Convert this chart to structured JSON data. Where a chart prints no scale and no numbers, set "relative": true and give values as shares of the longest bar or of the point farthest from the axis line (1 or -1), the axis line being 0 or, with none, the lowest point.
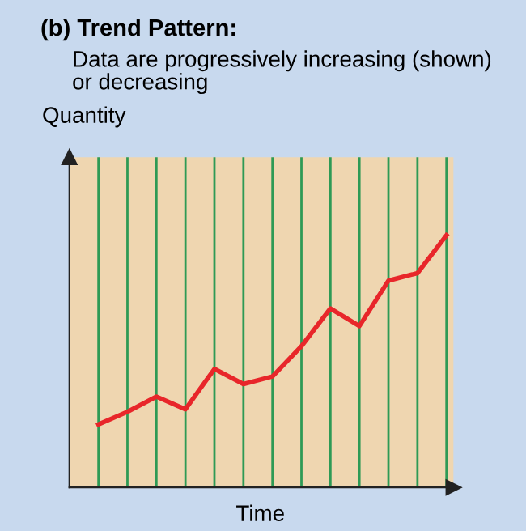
{
  "chart_data": {
    "type": "line",
    "title": "(b) Trend Pattern:",
    "subtitle": "Data are progressively increasing (shown)\nor decreasing",
    "ylabel": "Quantity",
    "xlabel": "Time",
    "categories": [
      null,
      null,
      null,
      null,
      null,
      null,
      null,
      null,
      null,
      null,
      null,
      null,
      null
    ],
    "relative": true,
    "grid": "x",
    "marker": "none",
    "line_style": "solid",
    "tick_labels": false,
    "series": [
      {
        "color": "#e8262a",
        "values": [
          0.25,
          0.3,
          0.36,
          0.31,
          0.47,
          0.41,
          0.44,
          0.56,
          0.71,
          0.64,
          0.82,
          0.85,
          1.0
        ]
      }
    ]
  }
}
